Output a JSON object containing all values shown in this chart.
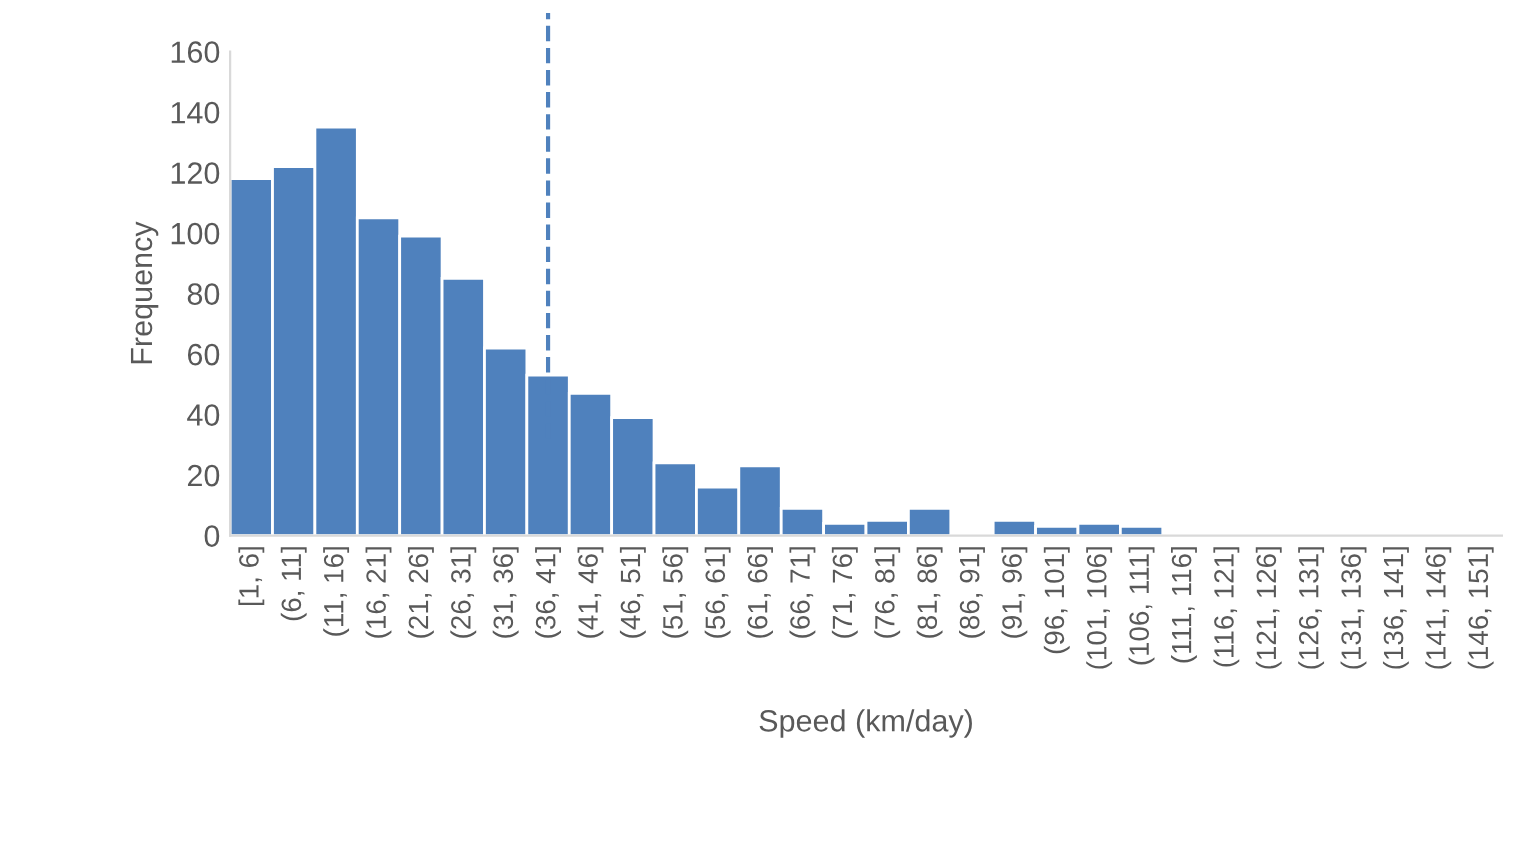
{
  "chart_data": {
    "type": "bar",
    "xlabel": "Speed (km/day)",
    "ylabel": "Frequency",
    "categories": [
      "[1, 6]",
      "(6, 11]",
      "(11, 16]",
      "(16, 21]",
      "(21, 26]",
      "(26, 31]",
      "(31, 36]",
      "(36, 41]",
      "(41, 46]",
      "(46, 51]",
      "(51, 56]",
      "(56, 61]",
      "(61, 66]",
      "(66, 71]",
      "(71, 76]",
      "(76, 81]",
      "(81, 86]",
      "(86, 91]",
      "(91, 96]",
      "(96, 101]",
      "(101, 106]",
      "(106, 111]",
      "(111, 116]",
      "(116, 121]",
      "(121, 126]",
      "(126, 131]",
      "(131, 136]",
      "(136, 141]",
      "(141, 146]",
      "(146, 151]"
    ],
    "values": [
      118,
      122,
      135,
      105,
      99,
      85,
      62,
      53,
      47,
      39,
      24,
      16,
      23,
      9,
      4,
      5,
      9,
      0,
      5,
      3,
      4,
      3,
      0,
      0,
      0,
      0,
      0,
      0,
      0,
      0
    ],
    "color": "#4f81bd",
    "ylim": [
      0,
      160
    ],
    "yticks": [
      0,
      20,
      40,
      60,
      80,
      100,
      120,
      140,
      160
    ],
    "grid": false,
    "legend": false,
    "ref_lines": [
      {
        "axis": "x",
        "value": "(36, 41]",
        "color": "#4f81bd",
        "line_style": "dashed"
      }
    ]
  }
}
